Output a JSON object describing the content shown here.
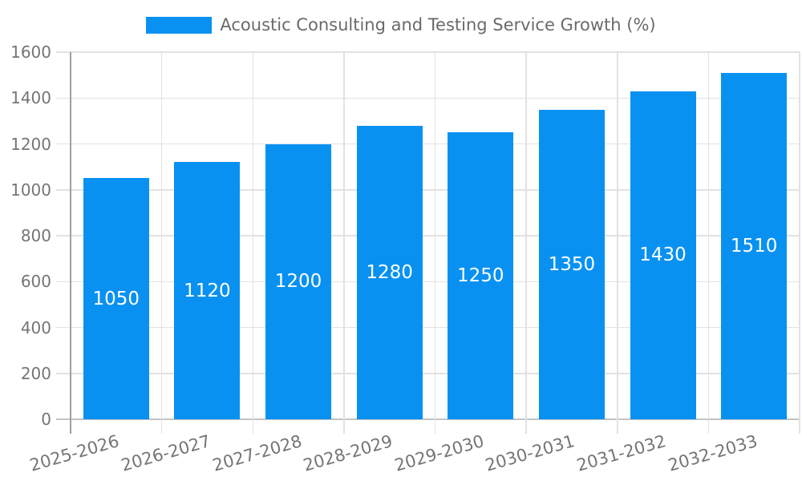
{
  "colors": {
    "bar": "#0991F2",
    "grid": "#e2e2e2",
    "baseline": "#c4c4c4",
    "axis": "#a0a0a0",
    "tick_label": "#757575",
    "legend_text": "#6a6a6a",
    "value_label": "#ffffff",
    "background": "#ffffff"
  },
  "legend": {
    "label": "Acoustic Consulting and Testing Service Growth (%)"
  },
  "chart_data": {
    "type": "bar",
    "title": "Acoustic Consulting and Testing Service Growth (%)",
    "categories": [
      "2025-2026",
      "2026-2027",
      "2027-2028",
      "2028-2029",
      "2029-2030",
      "2030-2031",
      "2031-2032",
      "2032-2033"
    ],
    "values": [
      1050,
      1120,
      1200,
      1280,
      1250,
      1350,
      1430,
      1510
    ],
    "series": [
      {
        "name": "Acoustic Consulting and Testing Service Growth (%)",
        "color": "#0991F2",
        "values": [
          1050,
          1120,
          1200,
          1280,
          1250,
          1350,
          1430,
          1510
        ]
      }
    ],
    "bar_value_labels": [
      "1050",
      "1120",
      "1200",
      "1280",
      "1250",
      "1350",
      "1430",
      "1510"
    ],
    "xlabel": "",
    "ylabel": "",
    "ylim": [
      0,
      1600
    ],
    "yticks": [
      0,
      200,
      400,
      600,
      800,
      1000,
      1200,
      1400,
      1600
    ],
    "grid": true,
    "legend_position": "top-center",
    "x_tick_rotation_deg": -16
  }
}
